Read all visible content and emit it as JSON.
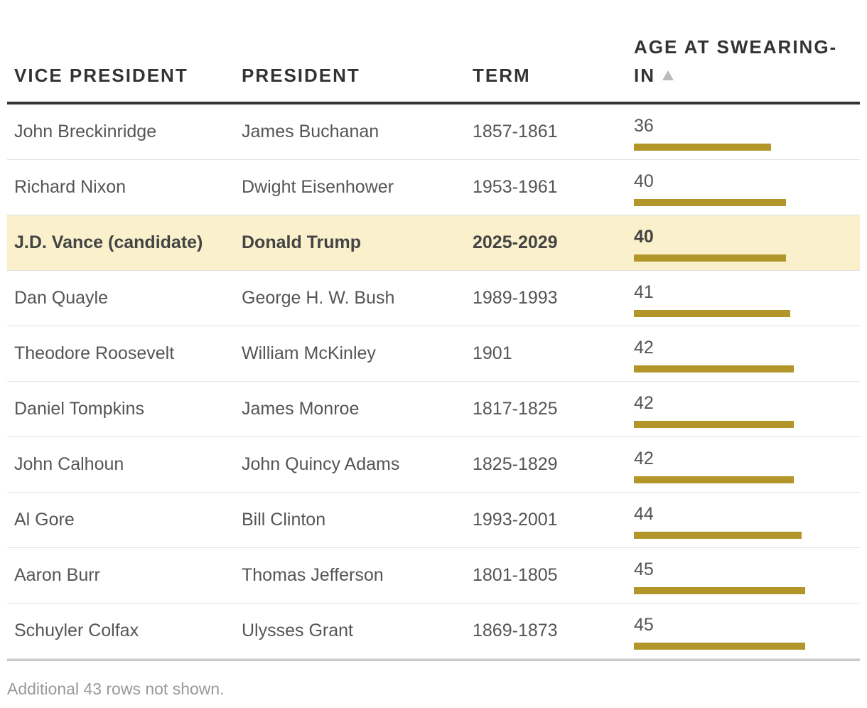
{
  "table": {
    "headers": {
      "vice_president": "VICE PRESIDENT",
      "president": "PRESIDENT",
      "term": "TERM",
      "age": "AGE AT SWEARING-IN"
    },
    "sort": {
      "column": "age",
      "direction": "ascending",
      "icon": "sort-ascending-triangle"
    },
    "bar_color": "#b3962a",
    "highlight_color": "#faf0cc",
    "age_bar_scale_max": 56,
    "rows": [
      {
        "vice_president": "John Breckinridge",
        "president": "James Buchanan",
        "term": "1857-1861",
        "age": "36",
        "age_value": 36,
        "highlight": false
      },
      {
        "vice_president": "Richard Nixon",
        "president": "Dwight Eisenhower",
        "term": "1953-1961",
        "age": "40",
        "age_value": 40,
        "highlight": false
      },
      {
        "vice_president": "J.D. Vance (candidate)",
        "president": "Donald Trump",
        "term": "2025-2029",
        "age": "40",
        "age_value": 40,
        "highlight": true
      },
      {
        "vice_president": "Dan Quayle",
        "president": "George H. W. Bush",
        "term": "1989-1993",
        "age": "41",
        "age_value": 41,
        "highlight": false
      },
      {
        "vice_president": "Theodore Roosevelt",
        "president": "William McKinley",
        "term": "1901",
        "age": "42",
        "age_value": 42,
        "highlight": false
      },
      {
        "vice_president": "Daniel Tompkins",
        "president": "James Monroe",
        "term": "1817-1825",
        "age": "42",
        "age_value": 42,
        "highlight": false
      },
      {
        "vice_president": "John Calhoun",
        "president": "John Quincy Adams",
        "term": "1825-1829",
        "age": "42",
        "age_value": 42,
        "highlight": false
      },
      {
        "vice_president": "Al Gore",
        "president": "Bill Clinton",
        "term": "1993-2001",
        "age": "44",
        "age_value": 44,
        "highlight": false
      },
      {
        "vice_president": "Aaron Burr",
        "president": "Thomas Jefferson",
        "term": "1801-1805",
        "age": "45",
        "age_value": 45,
        "highlight": false
      },
      {
        "vice_president": "Schuyler Colfax",
        "president": "Ulysses Grant",
        "term": "1869-1873",
        "age": "45",
        "age_value": 45,
        "highlight": false
      }
    ]
  },
  "footnote": "Additional 43 rows not shown."
}
